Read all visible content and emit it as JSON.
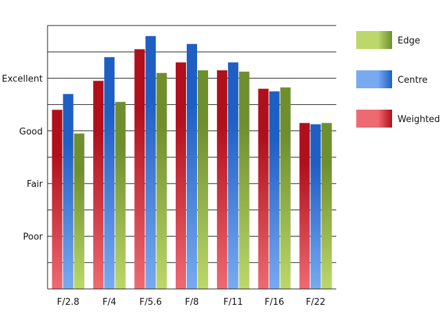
{
  "chart_data": {
    "type": "bar",
    "categories": [
      "F/2.8",
      "F/4",
      "F/5.6",
      "F/8",
      "F/11",
      "F/16",
      "F/22"
    ],
    "y_tick_labels": [
      {
        "label": "Poor",
        "value": 2
      },
      {
        "label": "Fair",
        "value": 4
      },
      {
        "label": "Good",
        "value": 6
      },
      {
        "label": "Excellent",
        "value": 8
      }
    ],
    "ylim": [
      0,
      10
    ],
    "grid": true,
    "legend_position": "right",
    "series": [
      {
        "name": "Weighted",
        "key": "weighted",
        "color_dark": "#b0101c",
        "color_light": "#ee6a72",
        "values": [
          6.8,
          7.9,
          9.1,
          8.6,
          8.3,
          7.6,
          6.3
        ]
      },
      {
        "name": "Centre",
        "key": "centre",
        "color_dark": "#1f5fc4",
        "color_light": "#78aaf0",
        "values": [
          7.4,
          8.8,
          9.6,
          9.3,
          8.6,
          7.5,
          6.25
        ]
      },
      {
        "name": "Edge",
        "key": "edge",
        "color_dark": "#6f8f2f",
        "color_light": "#bcd86a",
        "values": [
          5.9,
          7.1,
          8.2,
          8.3,
          8.25,
          7.65,
          6.3
        ]
      }
    ],
    "legend_order": [
      "Edge",
      "Centre",
      "Weighted"
    ]
  }
}
